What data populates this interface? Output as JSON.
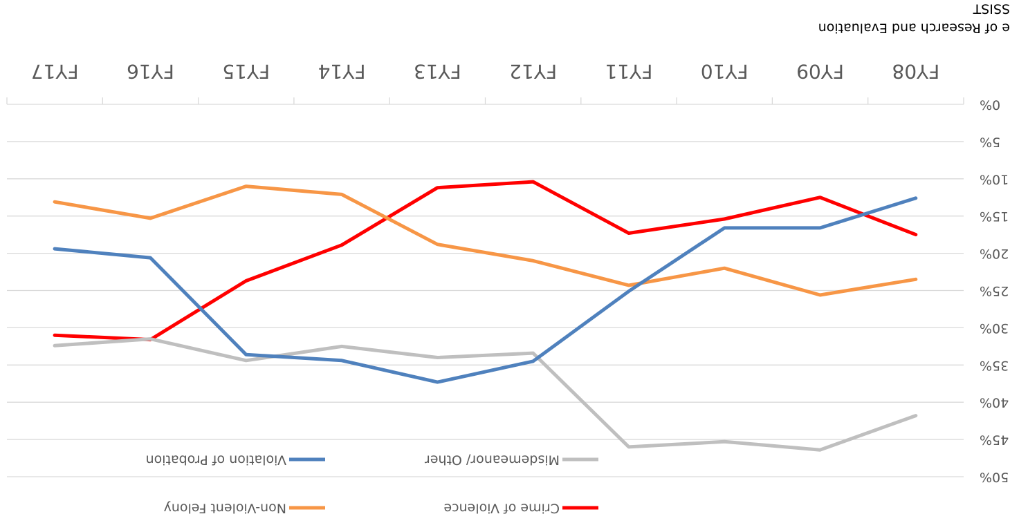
{
  "chart_data": {
    "type": "line",
    "categories": [
      "FY08",
      "FY09",
      "FY10",
      "FY11",
      "FY12",
      "FY13",
      "FY14",
      "FY15",
      "FY16",
      "FY17"
    ],
    "series": [
      {
        "name": "Crime of Violence",
        "color": "#ff0000",
        "values": [
          17.5,
          12.5,
          15.4,
          17.3,
          10.4,
          11.2,
          18.9,
          23.7,
          31.6,
          31.0
        ]
      },
      {
        "name": "Non-Violent Felony",
        "color": "#f79646",
        "values": [
          23.5,
          25.6,
          22.0,
          24.3,
          21.0,
          18.8,
          12.1,
          11.0,
          15.3,
          13.1
        ]
      },
      {
        "name": "Misdemeanor/ Other",
        "color": "#bfbfbf",
        "values": [
          41.8,
          46.4,
          45.3,
          46.0,
          33.4,
          34.0,
          32.5,
          34.4,
          31.5,
          32.4
        ]
      },
      {
        "name": "Violation of Probation",
        "color": "#4f81bd",
        "values": [
          12.6,
          16.6,
          16.6,
          25.1,
          34.5,
          37.3,
          34.4,
          33.6,
          20.6,
          19.4
        ]
      }
    ],
    "ylim": [
      0,
      50
    ],
    "yticks": [
      {
        "value": 0,
        "label": "0%"
      },
      {
        "value": 5,
        "label": "5%"
      },
      {
        "value": 10,
        "label": "10%"
      },
      {
        "value": 15,
        "label": "15%"
      },
      {
        "value": 20,
        "label": "20%"
      },
      {
        "value": 25,
        "label": "25%"
      },
      {
        "value": 30,
        "label": "30%"
      },
      {
        "value": 35,
        "label": "35%"
      },
      {
        "value": 40,
        "label": "40%"
      },
      {
        "value": 45,
        "label": "45%"
      },
      {
        "value": 50,
        "label": "50%"
      }
    ],
    "grid": true,
    "legend": "top",
    "source": [
      "e of Research and Evaluation",
      "SSIST"
    ]
  }
}
